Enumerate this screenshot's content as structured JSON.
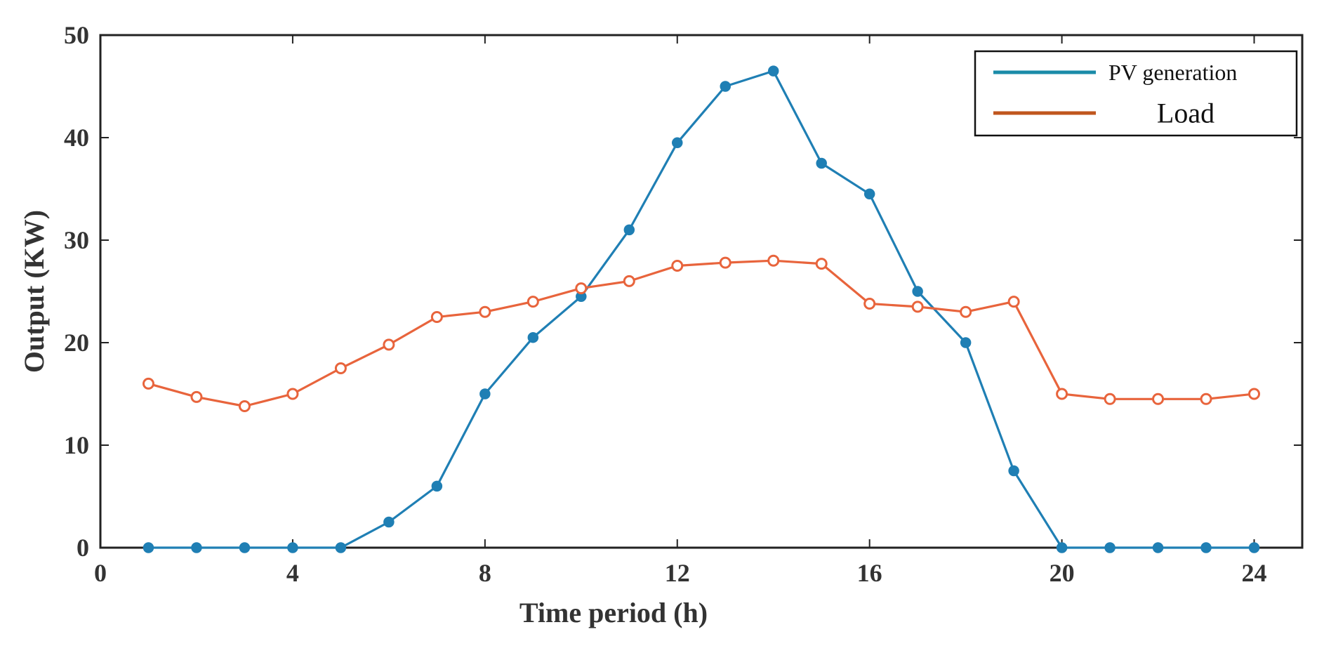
{
  "chart_data": {
    "type": "line",
    "title": "",
    "xlabel": "Time period (h)",
    "ylabel": "Output (KW)",
    "xlim": [
      0,
      25
    ],
    "ylim": [
      0,
      50
    ],
    "xticks": [
      0,
      4,
      8,
      12,
      16,
      20,
      24
    ],
    "yticks": [
      0,
      10,
      20,
      30,
      40,
      50
    ],
    "grid": false,
    "legend_position": "top-right",
    "x": [
      1,
      2,
      3,
      4,
      5,
      6,
      7,
      8,
      9,
      10,
      11,
      12,
      13,
      14,
      15,
      16,
      17,
      18,
      19,
      20,
      21,
      22,
      23,
      24
    ],
    "series": [
      {
        "name": "PV generation",
        "color": "#1f7fb4",
        "legend_color": "#1a8ba8",
        "marker": "filled-circle",
        "values": [
          0,
          0,
          0,
          0,
          0,
          2.5,
          6,
          15,
          20.5,
          24.5,
          31,
          39.5,
          45,
          46.5,
          37.5,
          34.5,
          25,
          20,
          7.5,
          0,
          0,
          0,
          0,
          0
        ]
      },
      {
        "name": "Load",
        "color": "#e8643c",
        "legend_color": "#c0561e",
        "marker": "open-circle",
        "values": [
          16,
          14.7,
          13.8,
          15,
          17.5,
          19.8,
          22.5,
          23,
          24,
          25.3,
          26,
          27.5,
          27.8,
          28,
          27.7,
          23.8,
          23.5,
          23,
          24,
          15,
          14.5,
          14.5,
          14.5,
          15
        ]
      }
    ]
  }
}
